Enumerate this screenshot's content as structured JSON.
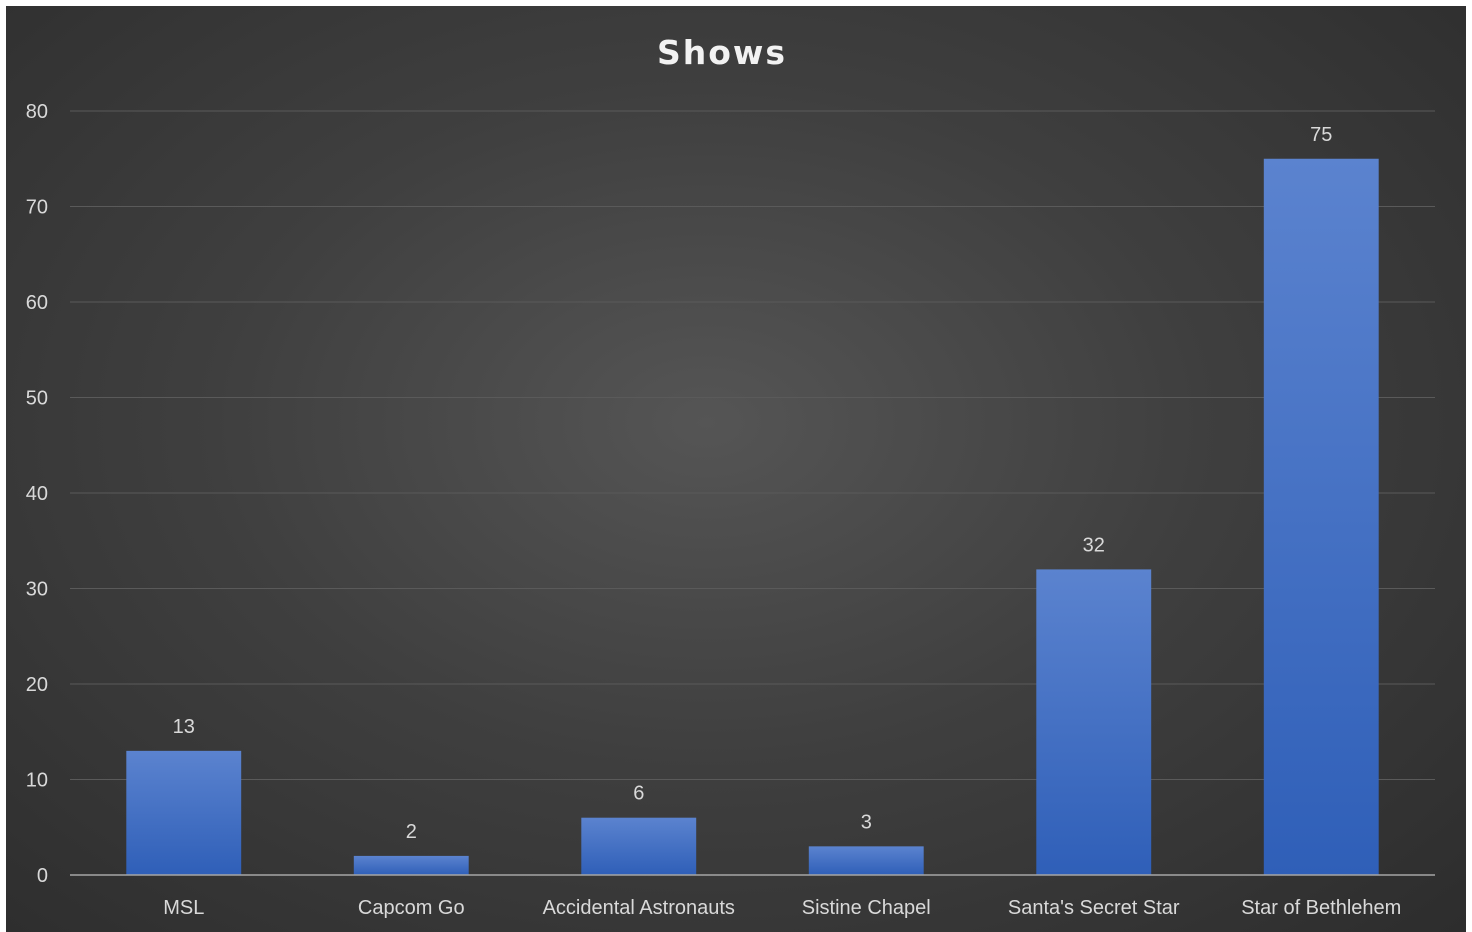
{
  "chart_data": {
    "type": "bar",
    "title": "Shows",
    "xlabel": "",
    "ylabel": "",
    "categories": [
      "MSL",
      "Capcom Go",
      "Accidental Astronauts",
      "Sistine Chapel",
      "Santa's Secret Star",
      "Star of Bethlehem"
    ],
    "values": [
      13,
      2,
      6,
      3,
      32,
      75
    ],
    "ylim": [
      0,
      80
    ],
    "yticks": [
      0,
      10,
      20,
      30,
      40,
      50,
      60,
      70,
      80
    ],
    "grid": true,
    "legend": "none",
    "data_labels": true,
    "colors": {
      "bar_top": "#5b83cf",
      "bar_bottom": "#2f5fb8",
      "background_center": "#555555",
      "background_edge": "#2c2c2c"
    }
  }
}
